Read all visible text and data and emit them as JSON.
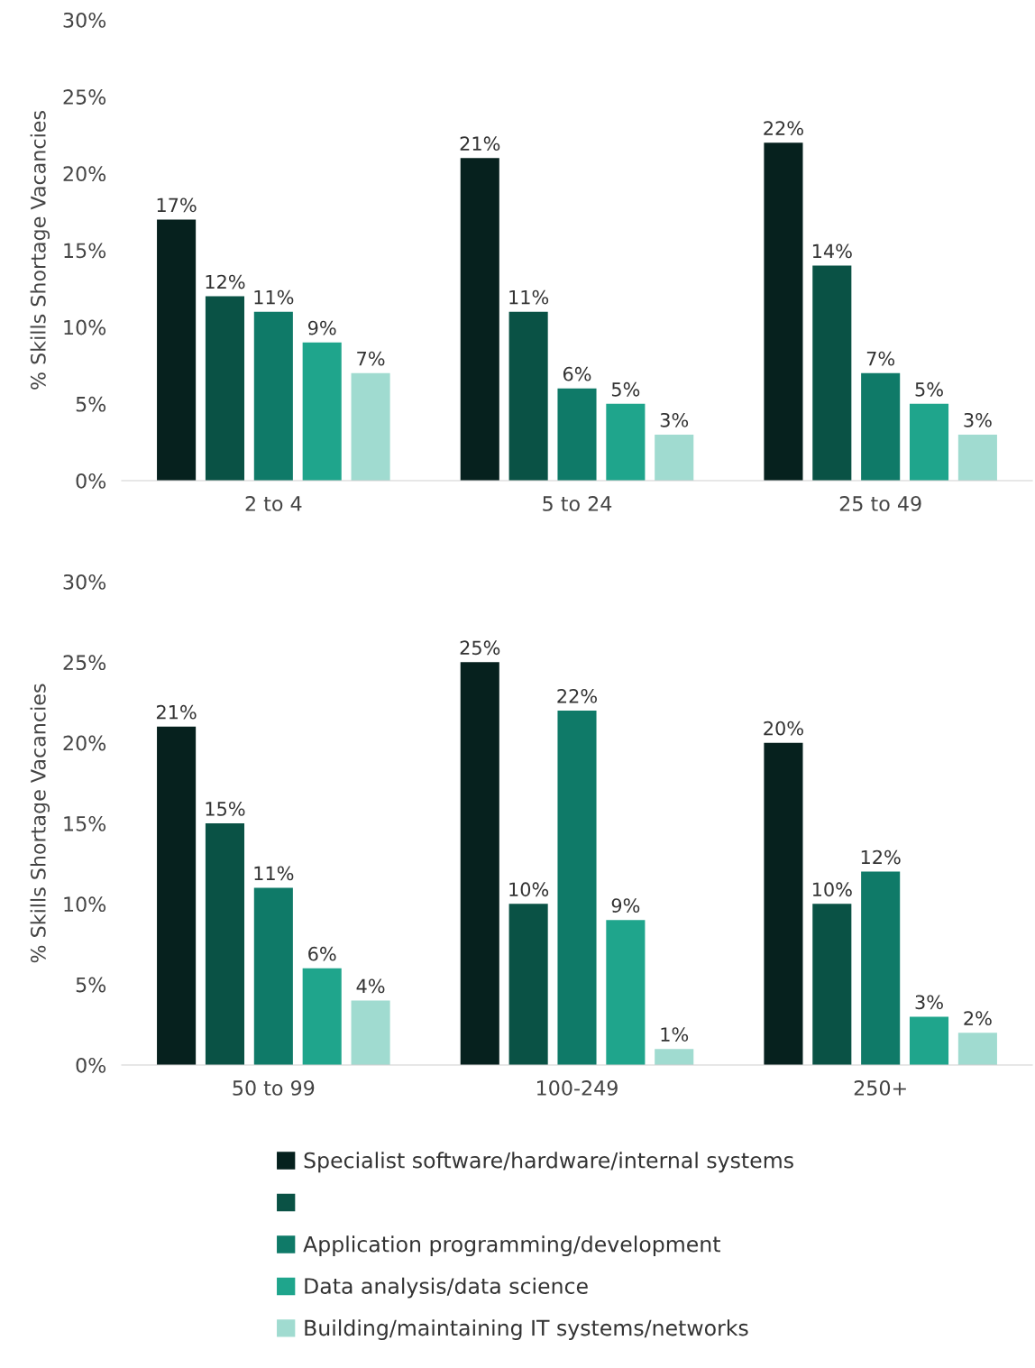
{
  "chart_data": [
    {
      "type": "bar",
      "ylabel": "% Skills Shortage Vacancies",
      "categories": [
        "2 to 4",
        "5 to 24",
        "25 to 49"
      ],
      "ylim": [
        0,
        30
      ],
      "yticks": [
        {
          "value": 0,
          "label": "0%"
        },
        {
          "value": 5,
          "label": "5%"
        },
        {
          "value": 10,
          "label": "10%"
        },
        {
          "value": 15,
          "label": "15%"
        },
        {
          "value": 20,
          "label": "20%"
        },
        {
          "value": 25,
          "label": "25%"
        },
        {
          "value": 30,
          "label": "30%"
        }
      ],
      "grid": false,
      "legend": false,
      "series": [
        {
          "color": "#06211e",
          "values": [
            17,
            21,
            22
          ],
          "value_labels": [
            "17%",
            "21%",
            "22%"
          ]
        },
        {
          "color": "#0a5245",
          "values": [
            12,
            11,
            14
          ],
          "value_labels": [
            "12%",
            "11%",
            "14%"
          ]
        },
        {
          "color": "#0f7a68",
          "values": [
            11,
            6,
            7
          ],
          "value_labels": [
            "11%",
            "6%",
            "7%"
          ]
        },
        {
          "color": "#1fa58c",
          "values": [
            9,
            5,
            5
          ],
          "value_labels": [
            "9%",
            "5%",
            "5%"
          ]
        },
        {
          "color": "#a0dbd0",
          "values": [
            7,
            3,
            3
          ],
          "value_labels": [
            "7%",
            "3%",
            "3%"
          ]
        }
      ]
    },
    {
      "type": "bar",
      "ylabel": "% Skills Shortage Vacancies",
      "categories": [
        "50 to 99",
        "100-249",
        "250+"
      ],
      "ylim": [
        0,
        30
      ],
      "yticks": [
        {
          "value": 0,
          "label": "0%"
        },
        {
          "value": 5,
          "label": "5%"
        },
        {
          "value": 10,
          "label": "10%"
        },
        {
          "value": 15,
          "label": "15%"
        },
        {
          "value": 20,
          "label": "20%"
        },
        {
          "value": 25,
          "label": "25%"
        },
        {
          "value": 30,
          "label": "30%"
        }
      ],
      "grid": false,
      "legend": "bottom",
      "series": [
        {
          "name": "Specialist software/hardware/internal systems",
          "color": "#06211e",
          "values": [
            21,
            25,
            20
          ],
          "value_labels": [
            "21%",
            "25%",
            "20%"
          ]
        },
        {
          "color": "#0a5245",
          "values": [
            15,
            10,
            10
          ],
          "value_labels": [
            "15%",
            "10%",
            "10%"
          ]
        },
        {
          "name": "Application programming/development",
          "color": "#0f7a68",
          "values": [
            11,
            22,
            12
          ],
          "value_labels": [
            "11%",
            "22%",
            "12%"
          ]
        },
        {
          "name": "Data analysis/data science",
          "color": "#1fa58c",
          "values": [
            6,
            9,
            3
          ],
          "value_labels": [
            "6%",
            "9%",
            "3%"
          ]
        },
        {
          "name": "Building/maintaining IT systems/networks",
          "color": "#a0dbd0",
          "values": [
            4,
            1,
            2
          ],
          "value_labels": [
            "4%",
            "1%",
            "2%"
          ]
        }
      ]
    }
  ]
}
